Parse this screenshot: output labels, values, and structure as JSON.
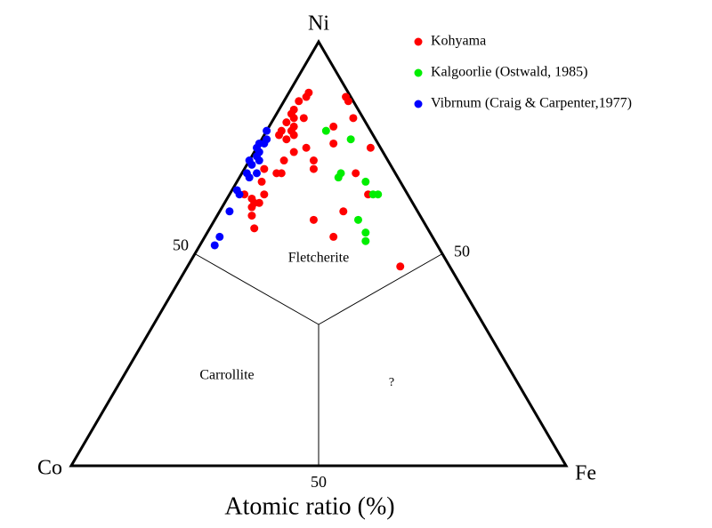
{
  "chart_data": {
    "type": "ternary",
    "x_label": "Atomic ratio (%)",
    "vertices": {
      "top": "Ni",
      "left": "Co",
      "right": "Fe"
    },
    "ticks": {
      "left_edge": [
        50
      ],
      "right_edge": [
        50
      ],
      "bottom_edge": [
        50
      ]
    },
    "regions": [
      "Fletcherite",
      "Carrollite",
      "?"
    ],
    "legend": "upper right",
    "series": [
      {
        "name": "Kohyama",
        "color": "#ff0000",
        "ni": [
          87,
          86,
          88,
          87,
          86,
          84,
          83,
          82,
          82,
          81,
          80,
          79,
          79,
          78,
          78,
          77,
          82,
          80,
          76,
          75,
          75,
          74,
          72,
          70,
          72,
          69,
          70,
          69,
          69,
          67,
          64,
          64,
          63,
          62,
          61,
          59,
          62,
          64,
          60,
          58,
          54,
          56,
          47
        ],
        "fe": [
          12,
          13,
          4,
          4,
          3,
          3,
          3,
          4,
          6,
          3,
          5,
          3,
          5,
          3,
          6,
          5,
          16,
          13,
          15,
          23,
          10,
          8,
          13,
          14,
          7,
          8,
          4,
          23,
          7,
          5,
          7,
          3,
          5,
          6,
          6,
          7,
          7,
          28,
          25,
          20,
          26,
          9,
          43
        ]
      },
      {
        "name": "Kalgoorlie (Ostwald, 1985)",
        "color": "#00ee00",
        "ni": [
          79,
          77,
          69,
          68,
          67,
          64,
          64,
          58,
          55,
          53
        ],
        "fe": [
          12,
          18,
          20,
          20,
          26,
          29,
          30,
          29,
          32,
          33
        ]
      },
      {
        "name": "Vibrnum (Craig & Carpenter,1977)",
        "color": "#0000ff",
        "ni": [
          79,
          77,
          76,
          75,
          74,
          73,
          72,
          71,
          69,
          69,
          68,
          65,
          64,
          60,
          54,
          52,
          76,
          72
        ],
        "fe": [
          0,
          1,
          1,
          0,
          1,
          1,
          2,
          1,
          1,
          3,
          2,
          1,
          2,
          2,
          3,
          3,
          0,
          0
        ]
      }
    ]
  }
}
